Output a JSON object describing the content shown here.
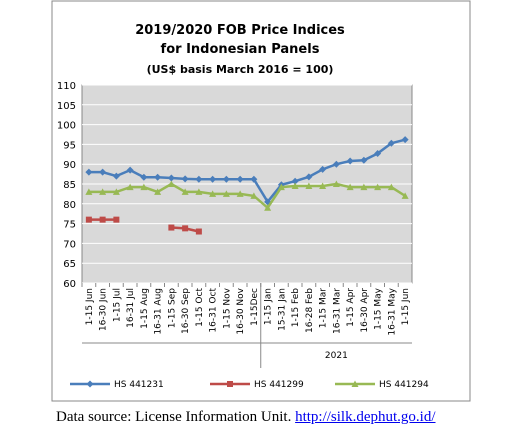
{
  "chart_data": {
    "type": "line",
    "title_lines": [
      "2019/2020 FOB Price Indices",
      "for Indonesian Panels"
    ],
    "subtitle": "(US$ basis March 2016 = 100)",
    "categories": [
      "1-15 Jun",
      "16-30 Jun",
      "1-15 Jul",
      "16-31 Jul",
      "1-15 Aug",
      "16-31 Aug",
      "1-15 Sep",
      "16-30 Sep",
      "1-15 Oct",
      "16-31 Oct",
      "1-15 Nov",
      "16-30 Nov",
      "1-15Dec",
      "1-15 Jan",
      "15-31 Jan",
      "1-15 Feb",
      "16-28 Feb",
      "1-15 Mar",
      "16-31 Mar",
      "1-15 Apr",
      "16-30 Apr",
      "1-15 May",
      "16-31 May",
      "1-15 Jun"
    ],
    "series": [
      {
        "name": "HS 441231",
        "color": "#4a7ebb",
        "marker": "diamond",
        "values": [
          88,
          88,
          87,
          88.5,
          86.7,
          86.7,
          86.5,
          86.3,
          86.2,
          86.2,
          86.2,
          86.2,
          86.2,
          80.5,
          84.8,
          85.7,
          86.8,
          88.7,
          90,
          90.8,
          91,
          92.7,
          95.3,
          96.2
        ]
      },
      {
        "name": "HS 441299",
        "color": "#be4b48",
        "marker": "square",
        "values": [
          76,
          76,
          76,
          null,
          null,
          null,
          74,
          73.8,
          73,
          null,
          null,
          null,
          null,
          null,
          null,
          null,
          null,
          null,
          null,
          null,
          null,
          null,
          null,
          null
        ]
      },
      {
        "name": "HS 441294",
        "color": "#98b954",
        "marker": "triangle",
        "values": [
          83,
          83,
          83,
          84.2,
          84.2,
          83,
          85,
          83,
          83,
          82.5,
          82.5,
          82.5,
          82,
          79,
          84.2,
          84.5,
          84.5,
          84.5,
          85,
          84.2,
          84.2,
          84.2,
          84.2,
          82
        ]
      }
    ],
    "annotations": [
      "2021"
    ],
    "ylim": [
      60,
      110
    ],
    "yticks": [
      60,
      65,
      70,
      75,
      80,
      85,
      90,
      95,
      100,
      105,
      110
    ],
    "grid": true,
    "legend": "bottom"
  },
  "source": {
    "text": "Data source: License Information Unit.",
    "link": "http://silk.dephut.go.id/"
  }
}
